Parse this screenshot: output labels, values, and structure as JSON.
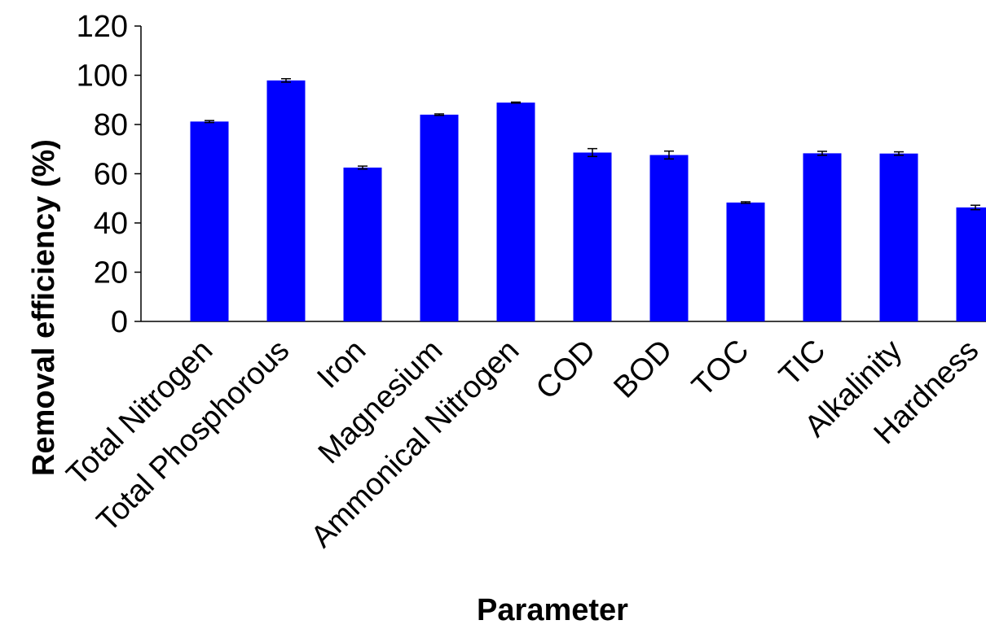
{
  "chart_data": {
    "type": "bar",
    "title": "",
    "xlabel": "Parameter",
    "ylabel": "Removal efficiency (%)",
    "ylim": [
      0,
      120
    ],
    "yticks": [
      0,
      20,
      40,
      60,
      80,
      100,
      120
    ],
    "grid": false,
    "categories": [
      "Total Nitrogen",
      "Total Phosphorous",
      "Iron",
      "Magnesium",
      "Ammonical Nitrogen",
      "COD",
      "BOD",
      "TOC",
      "TIC",
      "Alkalinity",
      "Hardness"
    ],
    "values": [
      81.2,
      97.9,
      62.5,
      84.0,
      88.9,
      68.6,
      67.6,
      48.3,
      68.3,
      68.2,
      46.3
    ],
    "errors": [
      0.4,
      0.7,
      0.6,
      0.3,
      0.2,
      1.6,
      1.6,
      0.3,
      0.8,
      0.7,
      0.9
    ],
    "bar_color": "#0000FF"
  }
}
